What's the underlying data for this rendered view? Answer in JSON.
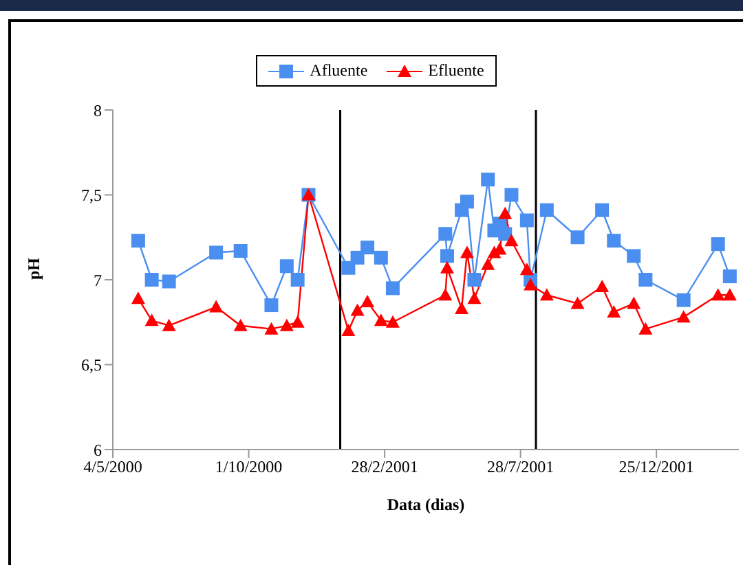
{
  "chart_data": {
    "type": "line",
    "xlabel": "Data (dias)",
    "ylabel": "pH",
    "x": [
      "2000-06-01",
      "2000-06-16",
      "2000-07-05",
      "2000-08-26",
      "2000-09-22",
      "2000-10-26",
      "2000-11-12",
      "2000-11-24",
      "2000-12-06",
      "2001-01-19",
      "2001-01-29",
      "2001-02-09",
      "2001-02-24",
      "2001-03-09",
      "2001-05-06",
      "2001-05-08",
      "2001-05-24",
      "2001-05-30",
      "2001-06-07",
      "2001-06-22",
      "2001-06-29",
      "2001-07-05",
      "2001-07-11",
      "2001-07-18",
      "2001-08-04",
      "2001-08-08",
      "2001-08-26",
      "2001-09-29",
      "2001-10-26",
      "2001-11-08",
      "2001-11-30",
      "2001-12-13",
      "2002-01-24",
      "2002-03-03",
      "2002-03-16"
    ],
    "series": [
      {
        "name": "Afluente",
        "color": "#4a8ff0",
        "marker": "square",
        "values": [
          7.23,
          7.0,
          6.99,
          7.16,
          7.17,
          6.85,
          7.08,
          7.0,
          7.5,
          7.07,
          7.13,
          7.19,
          7.13,
          6.95,
          7.27,
          7.14,
          7.41,
          7.46,
          7.0,
          7.59,
          7.29,
          7.33,
          7.27,
          7.5,
          7.35,
          7.0,
          7.41,
          7.25,
          7.41,
          7.23,
          7.14,
          7.0,
          6.88,
          7.21,
          7.02
        ]
      },
      {
        "name": "Efluente",
        "color": "#ff0000",
        "marker": "triangle",
        "values": [
          6.89,
          6.76,
          6.73,
          6.84,
          6.73,
          6.71,
          6.73,
          6.75,
          7.5,
          6.7,
          6.82,
          6.87,
          6.76,
          6.75,
          6.91,
          7.07,
          6.83,
          7.16,
          6.89,
          7.09,
          7.16,
          7.18,
          7.39,
          7.23,
          7.06,
          6.97,
          6.91,
          6.86,
          6.96,
          6.81,
          6.86,
          6.71,
          6.78,
          6.91,
          6.91
        ]
      }
    ],
    "xlim": [
      "2000-05-04",
      "2002-03-26"
    ],
    "xticks": [
      {
        "value": "2000-05-04",
        "label": "4/5/2000"
      },
      {
        "value": "2000-10-01",
        "label": "1/10/2000"
      },
      {
        "value": "2001-02-28",
        "label": "28/2/2001"
      },
      {
        "value": "2001-07-28",
        "label": "28/7/2001"
      },
      {
        "value": "2001-12-25",
        "label": "25/12/2001"
      }
    ],
    "ylim": [
      6,
      8
    ],
    "yticks": [
      6,
      {
        "value": 6.5,
        "label": "6,5"
      },
      7,
      {
        "value": 7.5,
        "label": "7,5"
      },
      8
    ],
    "ref_lines": [
      {
        "axis": "x",
        "value": "2001-01-10",
        "color": "#000000"
      },
      {
        "axis": "x",
        "value": "2001-08-14",
        "color": "#000000"
      }
    ],
    "legend": "top"
  }
}
